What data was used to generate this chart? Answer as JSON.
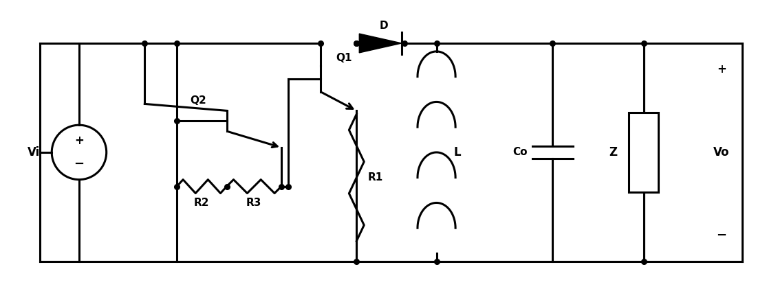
{
  "figsize": [
    11.31,
    4.24
  ],
  "dpi": 100,
  "lw": 2.2,
  "dot_r": 5.5,
  "XL": 0.55,
  "XVS": 1.12,
  "XN1": 2.08,
  "XQ2BL": 2.55,
  "XQ2x": 3.28,
  "XQ2R": 4.08,
  "XQ1base": 4.18,
  "XQ1x": 4.65,
  "XQ1em": 5.18,
  "XDL": 5.18,
  "XDR": 5.88,
  "XLind": 6.35,
  "XCo": 8.05,
  "XZn": 9.38,
  "XR": 10.82,
  "YT": 3.62,
  "YB": 0.42,
  "YQ1": 3.1,
  "YQ2": 2.48,
  "YRES": 1.52,
  "Q1bh": 0.38,
  "Q2bh": 0.3,
  "vs_r": 0.4,
  "labels": {
    "Vi": "Vi",
    "Q1": "Q1",
    "Q2": "Q2",
    "R1": "R1",
    "R2": "R2",
    "R3": "R3",
    "L": "L",
    "Co": "Co",
    "Z": "Z",
    "Vo": "Vo",
    "D": "D",
    "plus": "+",
    "minus": "−"
  }
}
